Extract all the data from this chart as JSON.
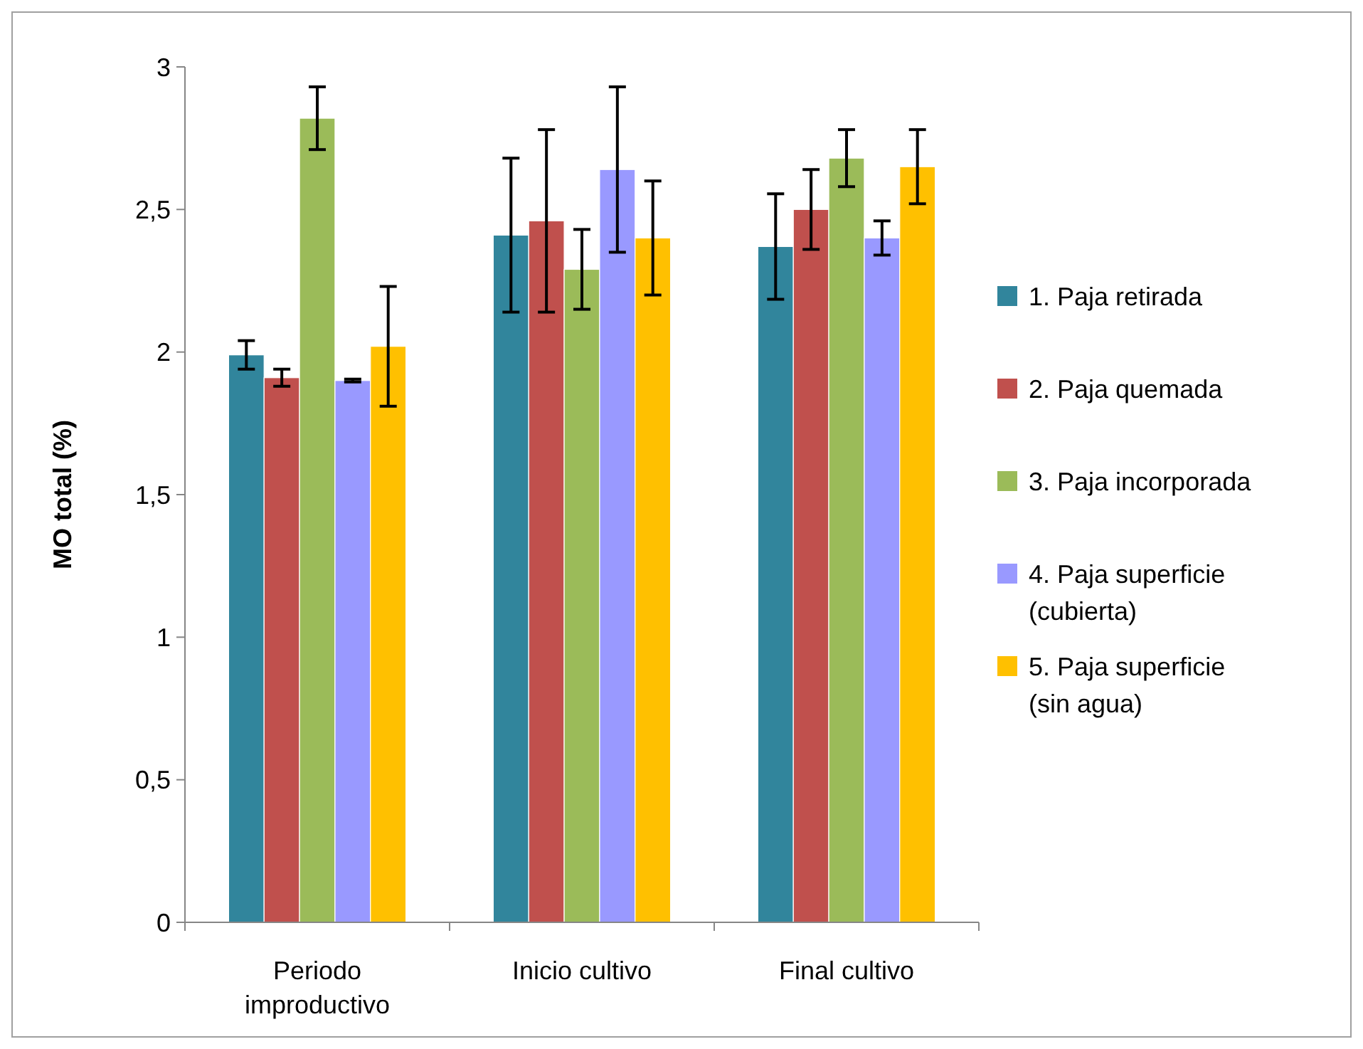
{
  "chart_data": {
    "type": "bar",
    "ylabel": "MO total (%)",
    "categories": [
      "Periodo improductivo",
      "Inicio cultivo",
      "Final cultivo"
    ],
    "series": [
      {
        "name": "1. Paja retirada",
        "color": "#31859c",
        "values": [
          1.99,
          2.41,
          2.37
        ],
        "errors": [
          0.05,
          0.27,
          0.185
        ]
      },
      {
        "name": "2. Paja quemada",
        "color": "#c0504d",
        "values": [
          1.91,
          2.46,
          2.5
        ],
        "errors": [
          0.03,
          0.32,
          0.14
        ]
      },
      {
        "name": "3. Paja incorporada",
        "color": "#9bbb59",
        "values": [
          2.82,
          2.29,
          2.68
        ],
        "errors": [
          0.11,
          0.14,
          0.1
        ]
      },
      {
        "name": "4. Paja superficie (cubierta)",
        "color": "#9999ff",
        "values": [
          1.9,
          2.64,
          2.4
        ],
        "errors": [
          0.005,
          0.29,
          0.06
        ]
      },
      {
        "name": "5. Paja superficie (sin agua)",
        "color": "#ffc000",
        "values": [
          2.02,
          2.4,
          2.65
        ],
        "errors": [
          0.21,
          0.2,
          0.13
        ]
      }
    ],
    "ylim": [
      0,
      3
    ],
    "yticks": [
      {
        "value": 0,
        "label": "0"
      },
      {
        "value": 0.5,
        "label": "0,5"
      },
      {
        "value": 1,
        "label": "1"
      },
      {
        "value": 1.5,
        "label": "1,5"
      },
      {
        "value": 2,
        "label": "2"
      },
      {
        "value": 2.5,
        "label": "2,5"
      },
      {
        "value": 3,
        "label": "3"
      }
    ],
    "grid": false,
    "legend": "right"
  }
}
